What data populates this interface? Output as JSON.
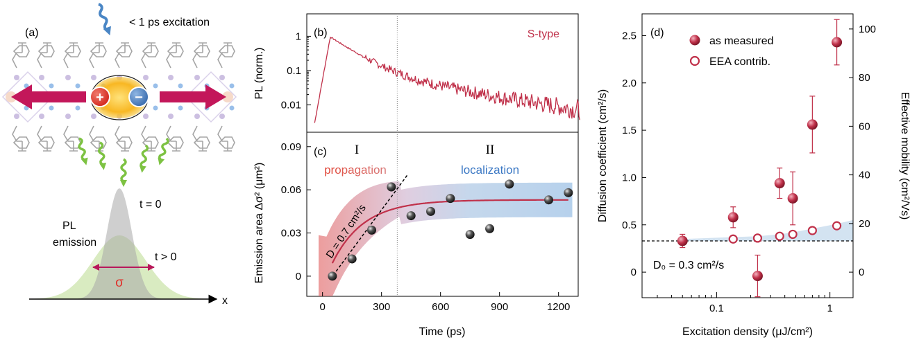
{
  "colors": {
    "accent": "#c0314a",
    "accent_dark": "#8e1f33",
    "blue": "#4a86c5",
    "blue_text": "#3b78c4",
    "red_text": "#d9463f",
    "green": "#7dc242",
    "arrow": "#c3175a",
    "gray": "#9a9a9a"
  },
  "panel_a": {
    "label": "(a)",
    "excitation": "< 1 ps excitation",
    "plus": "+",
    "minus": "−",
    "pl_line1": "PL",
    "pl_line2": "emission",
    "t0": "t = 0",
    "tgt0": "t > 0",
    "sigma": "σ",
    "x_axis": "x"
  },
  "chart_data": [
    {
      "panel": "(b)",
      "type": "line",
      "ylabel": "PL (norm.)",
      "yscale": "log",
      "yticks": [
        "1",
        "0.1",
        "0.01"
      ],
      "series": [
        {
          "name": "S-type",
          "x_range": [
            -40,
            1310
          ],
          "peak": [
            40,
            1.0
          ]
        }
      ],
      "divider_x": 380
    },
    {
      "panel": "(c)",
      "type": "scatter",
      "xlabel": "Time (ps)",
      "ylabel": "Emission area Δσ² (μm²)",
      "xlim": [
        -80,
        1300
      ],
      "ylim": [
        -0.014,
        0.1
      ],
      "xticks": [
        "0",
        "300",
        "600",
        "900",
        "1200"
      ],
      "yticks": [
        "0",
        "0.03",
        "0.06",
        "0.09"
      ],
      "points": [
        [
          50,
          0.0
        ],
        [
          150,
          0.012
        ],
        [
          250,
          0.032
        ],
        [
          350,
          0.062
        ],
        [
          450,
          0.042
        ],
        [
          550,
          0.045
        ],
        [
          650,
          0.054
        ],
        [
          750,
          0.029
        ],
        [
          850,
          0.033
        ],
        [
          950,
          0.064
        ],
        [
          1150,
          0.053
        ],
        [
          1250,
          0.058
        ]
      ],
      "regions": [
        {
          "numeral": "I",
          "label": "propagation"
        },
        {
          "numeral": "II",
          "label": "localization"
        }
      ],
      "slope_label": "D = 0.7 cm²/s",
      "divider_x": 380
    },
    {
      "panel": "(d)",
      "type": "scatter",
      "xscale": "log",
      "xlabel": "Excitation density (μJ/cm²)",
      "ylabel": "Diffusion coefficient (cm²/s)",
      "y2label": "Effective mobility (cm²/Vs)",
      "xlim": [
        0.022,
        1.6
      ],
      "ylim": [
        -0.27,
        2.73
      ],
      "xticks": [
        "0.1",
        "1"
      ],
      "yticks": [
        "0",
        "0.5",
        "1.0",
        "1.5",
        "2.0",
        "2.5"
      ],
      "y2ticks": [
        "0",
        "20",
        "40",
        "60",
        "80",
        "100"
      ],
      "series": [
        {
          "name": "as measured",
          "points": [
            [
              0.05,
              0.33
            ],
            [
              0.14,
              0.58
            ],
            [
              0.23,
              -0.04
            ],
            [
              0.36,
              0.94
            ],
            [
              0.47,
              0.78
            ],
            [
              0.7,
              1.56
            ],
            [
              1.15,
              2.43
            ]
          ],
          "errors": [
            0.07,
            0.11,
            0.22,
            0.16,
            0.28,
            0.3,
            0.24
          ]
        },
        {
          "name": "EEA contrib.",
          "points": [
            [
              0.14,
              0.35
            ],
            [
              0.23,
              0.36
            ],
            [
              0.36,
              0.38
            ],
            [
              0.47,
              0.4
            ],
            [
              0.7,
              0.44
            ],
            [
              1.15,
              0.49
            ]
          ]
        }
      ],
      "d0_label": "D₀ = 0.3 cm²/s",
      "d0_value": 0.33
    }
  ]
}
